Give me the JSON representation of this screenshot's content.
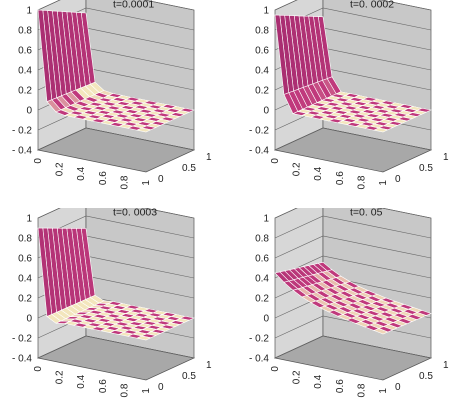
{
  "chart_data": [
    {
      "type": "surface",
      "title": "t=0.0001",
      "z_ticks": [
        "1",
        "0.8",
        "0.6",
        "0.4",
        "0.2",
        "0",
        "- 0.2",
        "- 0.4"
      ],
      "x_ticks": [
        "0",
        "0.2",
        "0.4",
        "0.6",
        "0.8",
        "1"
      ],
      "y_ticks": [
        "0",
        "0.5",
        "1"
      ],
      "zlim": [
        -0.4,
        1.0
      ],
      "xlim": [
        0,
        1
      ],
      "ylim": [
        0,
        1
      ],
      "grid": true,
      "surface_profile": {
        "x": [
          0,
          0.04,
          0.08,
          0.12,
          0.16,
          0.2
        ],
        "z_at_y0": [
          1.0,
          0.55,
          0.12,
          -0.1,
          0.02,
          0.0
        ]
      },
      "colors": {
        "high": "#8a1f63",
        "mid": "#c0397c",
        "low": "#f3e6bd",
        "edge": "#ffffff",
        "pane": "#c8c8c8",
        "floor": "#a8a8a8"
      }
    },
    {
      "type": "surface",
      "title": "t=0. 0002",
      "z_ticks": [
        "1",
        "0.8",
        "0.6",
        "0.4",
        "0.2",
        "0",
        "- 0.2",
        "- 0.4"
      ],
      "x_ticks": [
        "0",
        "0.2",
        "0.4",
        "0.6",
        "0.8",
        "1"
      ],
      "y_ticks": [
        "0",
        "0.5",
        "1"
      ],
      "zlim": [
        -0.4,
        1.0
      ],
      "xlim": [
        0,
        1
      ],
      "ylim": [
        0,
        1
      ],
      "grid": true,
      "surface_profile": {
        "x": [
          0,
          0.04,
          0.08,
          0.12,
          0.16,
          0.2
        ],
        "z_at_y0": [
          0.95,
          0.6,
          0.2,
          -0.12,
          0.0,
          0.0
        ]
      },
      "colors": {
        "high": "#8a1f63",
        "mid": "#c0397c",
        "low": "#f3e6bd",
        "edge": "#ffffff",
        "pane": "#c8c8c8",
        "floor": "#a8a8a8"
      }
    },
    {
      "type": "surface",
      "title": "t=0. 0003",
      "z_ticks": [
        "1",
        "0.8",
        "0.6",
        "0.4",
        "0.2",
        "0",
        "- 0.2",
        "- 0.4"
      ],
      "x_ticks": [
        "0",
        "0.2",
        "0.4",
        "0.6",
        "0.8",
        "1"
      ],
      "y_ticks": [
        "0",
        "0.5",
        "1"
      ],
      "zlim": [
        -0.4,
        1.0
      ],
      "xlim": [
        0,
        1
      ],
      "ylim": [
        0,
        1
      ],
      "grid": true,
      "surface_profile": {
        "x": [
          0,
          0.04,
          0.08,
          0.12,
          0.16,
          0.2
        ],
        "z_at_y0": [
          0.9,
          0.5,
          0.05,
          -0.15,
          -0.02,
          0.0
        ]
      },
      "colors": {
        "high": "#8a1f63",
        "mid": "#c0397c",
        "low": "#f3e6bd",
        "edge": "#ffffff",
        "pane": "#c8c8c8",
        "floor": "#a8a8a8"
      }
    },
    {
      "type": "surface",
      "title": "t=0. 05",
      "z_ticks": [
        "1",
        "0.8",
        "0.6",
        "0.4",
        "0.2",
        "0",
        "- 0.2",
        "- 0.4"
      ],
      "x_ticks": [
        "0",
        "0.2",
        "0.4",
        "0.6",
        "0.8",
        "1"
      ],
      "y_ticks": [
        "0",
        "0.5",
        "1"
      ],
      "zlim": [
        -0.4,
        1.0
      ],
      "xlim": [
        0,
        1
      ],
      "ylim": [
        0,
        1
      ],
      "grid": true,
      "surface_profile": {
        "x": [
          0,
          0.1,
          0.2,
          0.3,
          0.4,
          0.5,
          0.6,
          0.7,
          0.8,
          0.9,
          1.0
        ],
        "z_at_y0": [
          0.45,
          0.36,
          0.29,
          0.24,
          0.2,
          0.17,
          0.14,
          0.12,
          0.1,
          0.08,
          0.06
        ]
      },
      "colors": {
        "high": "#8a1f63",
        "mid": "#c0397c",
        "low": "#f3e6bd",
        "edge": "#ffffff",
        "pane": "#c8c8c8",
        "floor": "#a8a8a8"
      }
    }
  ]
}
